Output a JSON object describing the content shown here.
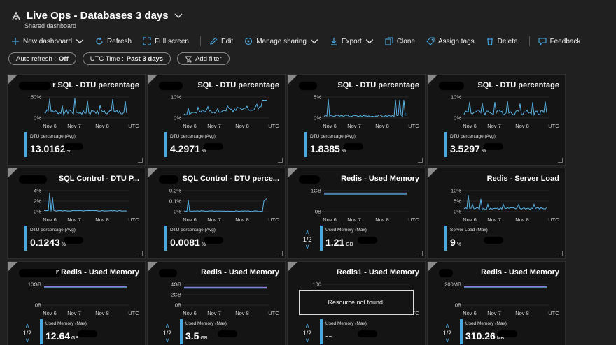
{
  "header": {
    "title": "Live Ops - Databases 3 days",
    "subtitle": "Shared dashboard"
  },
  "toolbar": [
    {
      "label": "New dashboard",
      "icon": "plus-icon",
      "chevron": true
    },
    {
      "label": "Refresh",
      "icon": "refresh-icon"
    },
    {
      "label": "Full screen",
      "icon": "fullscreen-icon"
    },
    {
      "label": "Edit",
      "icon": "pencil-icon"
    },
    {
      "label": "Manage sharing",
      "icon": "share-icon",
      "chevron": true
    },
    {
      "label": "Export",
      "icon": "download-icon",
      "chevron": true
    },
    {
      "label": "Clone",
      "icon": "clone-icon"
    },
    {
      "label": "Assign tags",
      "icon": "tag-icon"
    },
    {
      "label": "Delete",
      "icon": "trash-icon"
    },
    {
      "label": "Feedback",
      "icon": "feedback-icon"
    }
  ],
  "filters": {
    "auto_refresh_label": "Auto refresh :",
    "auto_refresh_value": "Off",
    "time_label": "UTC Time :",
    "time_value": "Past 3 days",
    "add_filter": "Add filter"
  },
  "colors": {
    "accent": "#4aa8e0",
    "line": "#5ab4e6",
    "purple": "#8a7fe0",
    "tile_bg": "#141414",
    "page_bg": "#202020"
  },
  "x_ticks": [
    "Nov 6",
    "Nov 7",
    "Nov 8",
    "UTC"
  ],
  "tiles": [
    {
      "title": "r SQL - DTU percentage",
      "yticks": [
        "50%",
        "0%"
      ],
      "metric_label": "DTU percentage (Avg)",
      "value": "13.0162",
      "unit": "%",
      "kind": "spike",
      "seed": 1
    },
    {
      "title": "SQL - DTU percentage",
      "yticks": [
        "10%",
        "0%"
      ],
      "metric_label": "DTU percentage (Avg)",
      "value": "4.2971",
      "unit": "%",
      "kind": "rise",
      "seed": 2
    },
    {
      "title": "SQL - DTU percentage",
      "yticks": [
        "5%",
        "0%"
      ],
      "metric_label": "DTU percentage (Avg)",
      "value": "1.8385",
      "unit": "%",
      "kind": "spike2",
      "seed": 3
    },
    {
      "title": "SQL - DTU percentage",
      "yticks": [
        "10%",
        "0%"
      ],
      "metric_label": "DTU percentage (Avg)",
      "value": "3.5297",
      "unit": "%",
      "kind": "spike",
      "seed": 4
    },
    {
      "title": "SQL Control - DTU P...",
      "yticks": [
        "4%",
        "2%",
        "0%"
      ],
      "metric_label": "DTU percentage (Avg)",
      "value": "0.1243",
      "unit": "%",
      "kind": "flat_spike",
      "seed": 5
    },
    {
      "title": "SQL Control - DTU perce...",
      "yticks": [
        "0.2%",
        "0.1%",
        "0%"
      ],
      "metric_label": "DTU percentage (Avg)",
      "value": "0.0081",
      "unit": "%",
      "kind": "flat_spike2",
      "seed": 6
    },
    {
      "title": "Redis - Used Memory",
      "yticks": [
        "1GB",
        "0B"
      ],
      "metric_label": "Used Memory (Max)",
      "value": "1.21",
      "unit": "GB",
      "kind": "memory",
      "pager": "1/2",
      "seed": 7
    },
    {
      "title": "Redis - Server Load",
      "yticks": [
        "10%",
        "5%",
        "0%"
      ],
      "metric_label": "Server Load (Max)",
      "value": "9",
      "unit": "%",
      "kind": "load",
      "seed": 8
    },
    {
      "title": "r Redis - Used Memory",
      "yticks": [
        "10GB",
        "0B"
      ],
      "metric_label": "Used Memory (Max)",
      "value": "12.64",
      "unit": "GB",
      "kind": "memory",
      "pager": "1/2",
      "seed": 9
    },
    {
      "title": "Redis - Used Memory",
      "yticks": [
        "4GB",
        "2GB",
        "0B"
      ],
      "metric_label": "Used Memory (Max)",
      "value": "3.5",
      "unit": "GB",
      "kind": "memory3",
      "pager": "1/2",
      "seed": 10
    },
    {
      "title": "Redis1 - Used Memory",
      "yticks": [
        "100",
        "0"
      ],
      "metric_label": "Used Memory (Max)",
      "value": "--",
      "unit": "",
      "kind": "notfound",
      "notfound": "Resource not found.",
      "pager": "1/2",
      "seed": 11
    },
    {
      "title": "Redis - Used Memory",
      "yticks": [
        "200MB",
        "0B"
      ],
      "metric_label": "Used Memory (Max)",
      "value": "310.26",
      "unit": "MB",
      "kind": "memory",
      "pager": "1/2",
      "seed": 12
    }
  ]
}
